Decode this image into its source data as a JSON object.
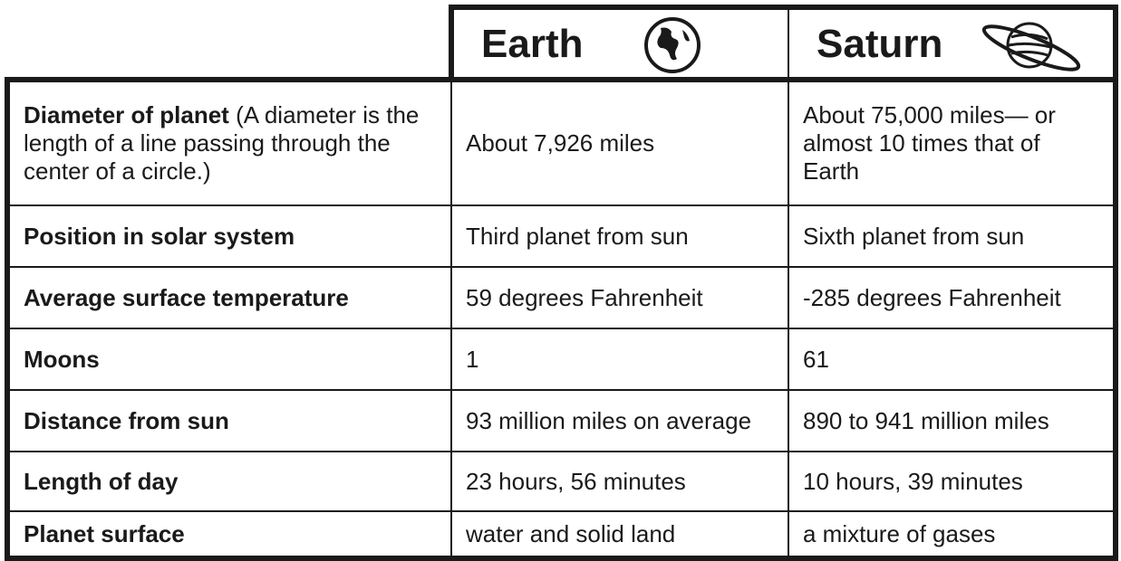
{
  "table": {
    "header": [
      "Earth",
      "Saturn"
    ],
    "rows": [
      {
        "label": "Diameter of planet",
        "note": "(A diameter is the length of a line passing through the center of a circle.)",
        "earth": "About 7,926 miles",
        "saturn": "About 75,000 miles— or almost 10 times that of Earth"
      },
      {
        "label": "Position in solar system",
        "earth": "Third planet from sun",
        "saturn": "Sixth planet from sun"
      },
      {
        "label": "Average surface temperature",
        "earth": "59 degrees Fahrenheit",
        "saturn": "-285 degrees Fahrenheit"
      },
      {
        "label": "Moons",
        "earth": "1",
        "saturn": "61"
      },
      {
        "label": "Distance from sun",
        "earth": "93 million miles on average",
        "saturn": "890 to 941 million miles"
      },
      {
        "label": "Length of day",
        "earth": "23 hours, 56 minutes",
        "saturn": "10 hours, 39 minutes"
      },
      {
        "label": "Planet surface",
        "earth": "water and solid land",
        "saturn": "a mixture of gases"
      }
    ]
  }
}
